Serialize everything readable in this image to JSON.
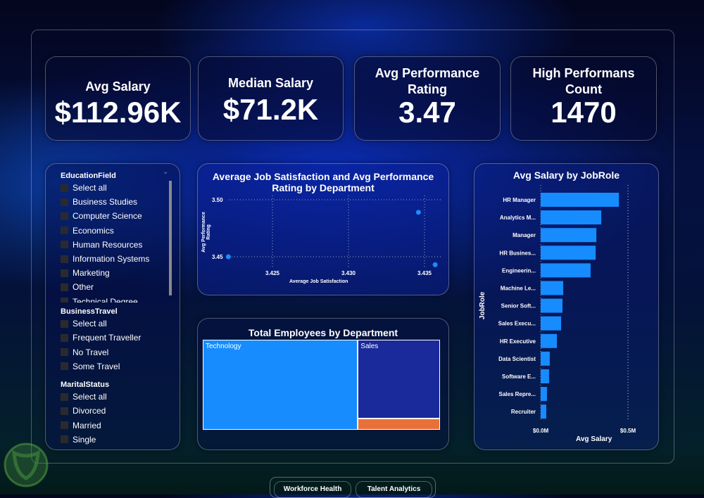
{
  "kpis": [
    {
      "label": "Avg Salary",
      "value": "$112.96K"
    },
    {
      "label": "Median Salary",
      "value": "$71.2K"
    },
    {
      "label": "Avg Performance Rating",
      "value": "3.47"
    },
    {
      "label": "High Performans Count",
      "value": "1470"
    }
  ],
  "slicers": {
    "education": {
      "title": "EducationField",
      "items": [
        "Select all",
        "Business Studies",
        "Computer Science",
        "Economics",
        "Human Resources",
        "Information Systems",
        "Marketing",
        "Other",
        "Technical Degree"
      ]
    },
    "travel": {
      "title": "BusinessTravel",
      "items": [
        "Select all",
        "Frequent Traveller",
        "No Travel",
        "Some Travel"
      ]
    },
    "marital": {
      "title": "MaritalStatus",
      "items": [
        "Select all",
        "Divorced",
        "Married",
        "Single"
      ]
    }
  },
  "nav": {
    "tabs": [
      "Workforce Health",
      "Talent Analytics"
    ]
  },
  "colors": {
    "bar": "#168cff",
    "treemap": [
      "#168cff",
      "#1a2a9a",
      "#e8713a"
    ]
  },
  "chart_data": [
    {
      "type": "scatter",
      "title": "Average Job Satisfaction and Avg Performance Rating by Department",
      "xlabel": "Average Job Satisfaction",
      "ylabel": "Avg Performance Rating",
      "xticks": [
        "3.425",
        "3.430",
        "3.435"
      ],
      "yticks": [
        "3.45",
        "3.50"
      ],
      "grid": true,
      "points": [
        {
          "x": 3.4346,
          "y": 3.489
        },
        {
          "x": 3.4221,
          "y": 3.45
        },
        {
          "x": 3.4357,
          "y": 3.443
        }
      ]
    },
    {
      "type": "treemap",
      "title": "Total Employees by Department",
      "items": [
        {
          "label": "Technology",
          "value": 961
        },
        {
          "label": "Sales",
          "value": 446
        },
        {
          "label": "",
          "value": 63
        }
      ]
    },
    {
      "type": "bar",
      "orientation": "horizontal",
      "title": "Avg Salary by JobRole",
      "xlabel": "Avg Salary",
      "ylabel": "JobRole",
      "xticks": [
        "$0.0M",
        "$0.5M"
      ],
      "xlim": [
        0,
        0.5
      ],
      "categories": [
        "HR Manager",
        "Analytics M...",
        "Manager",
        "HR Busines...",
        "Engineerin...",
        "Machine Le...",
        "Senior Soft...",
        "Sales Execu...",
        "HR Executive",
        "Data Scientist",
        "Software E...",
        "Sales Repre...",
        "Recruiter"
      ],
      "values": [
        0.448,
        0.347,
        0.319,
        0.315,
        0.286,
        0.129,
        0.125,
        0.117,
        0.093,
        0.052,
        0.048,
        0.036,
        0.032
      ]
    }
  ]
}
